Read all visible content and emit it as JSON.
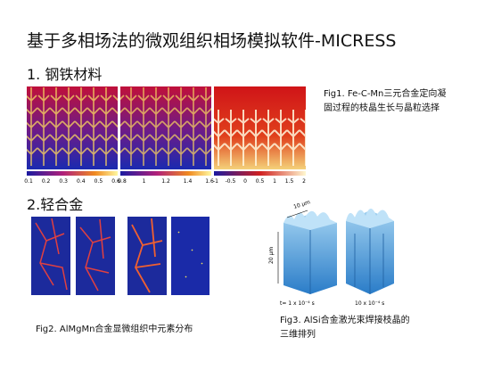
{
  "header": {
    "title": "基于多相场法的微观组织相场模拟软件-MICRESS"
  },
  "section1": {
    "heading": "1. 钢铁材料",
    "colorbars": [
      [
        "0.1",
        "0.2",
        "0.3",
        "0.4",
        "0.5",
        "0.6"
      ],
      [
        "0.8",
        "1",
        "1.2",
        "1.4",
        "1.6"
      ],
      [
        "-1",
        "-0.5",
        "0",
        "0.5",
        "1",
        "1.5",
        "2"
      ]
    ],
    "caption": "Fig1. Fe-C-Mn三元合金定向凝固过程的枝晶生长与晶粒选择"
  },
  "section2": {
    "heading": "2.轻合金",
    "fig2_caption": "Fig2. AlMgMn合金显微组织中元素分布",
    "fig3_labels": {
      "width": "10 μm",
      "height": "20 μm",
      "left_time": "t= 1 x 10⁻⁴ s",
      "right_time": "10 x 10⁻⁴ s"
    },
    "fig3_caption": "Fig3. AlSi合金激光束焊接枝晶的三维排列"
  }
}
